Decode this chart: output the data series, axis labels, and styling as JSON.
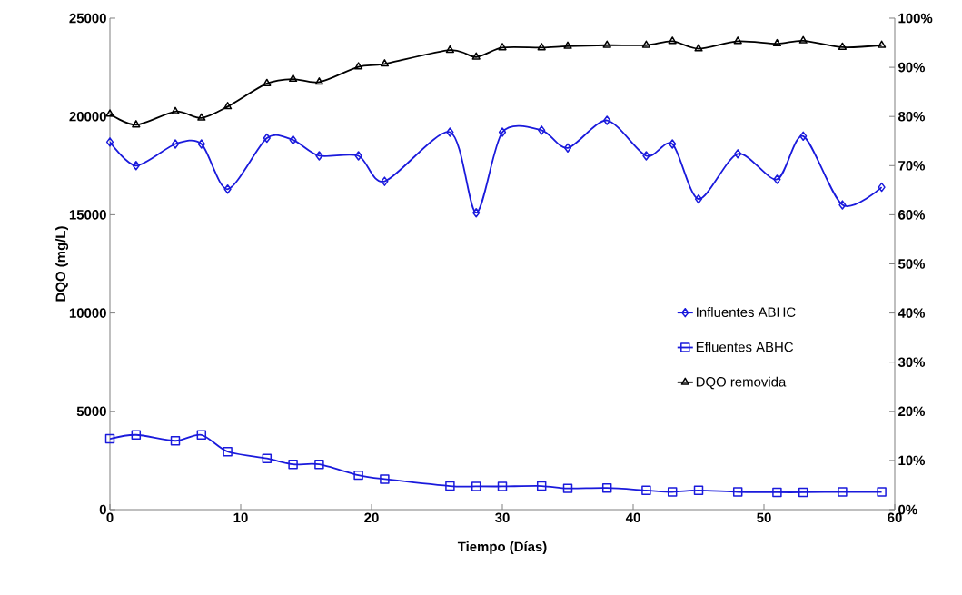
{
  "chart_data": {
    "type": "line",
    "xlabel": "Tiempo (Días)",
    "ylabel": "DQO (mg/L)",
    "x": [
      0,
      2,
      5,
      7,
      9,
      12,
      14,
      16,
      19,
      21,
      26,
      28,
      30,
      33,
      35,
      38,
      41,
      43,
      45,
      48,
      51,
      53,
      56,
      59
    ],
    "series": [
      {
        "name": "Influentes ABHC",
        "color": "#1a1adc",
        "marker": "diamond",
        "values": [
          18700,
          17500,
          18600,
          18600,
          16300,
          18900,
          18800,
          18000,
          18000,
          16700,
          19200,
          15100,
          19200,
          19300,
          18400,
          19800,
          18000,
          18600,
          15800,
          18100,
          16800,
          19000,
          15500,
          16400
        ]
      },
      {
        "name": "Efluentes ABHC",
        "color": "#1a1adc",
        "marker": "square",
        "values": [
          3600,
          3800,
          3500,
          3800,
          2950,
          2600,
          2300,
          2300,
          1750,
          1550,
          1200,
          1180,
          1180,
          1200,
          1080,
          1100,
          980,
          900,
          980,
          900,
          880,
          880,
          900,
          900
        ]
      },
      {
        "name": "DQO removida",
        "color": "#000000",
        "marker": "triangle",
        "axis": "y2",
        "values": [
          80.5,
          78.3,
          81,
          79.7,
          82,
          86.7,
          87.6,
          87,
          90.1,
          90.7,
          93.5,
          92.1,
          94,
          94,
          94.3,
          94.5,
          94.5,
          95.3,
          93.8,
          95.3,
          94.8,
          95.4,
          94.1,
          94.5
        ]
      }
    ],
    "xlim": [
      0,
      60
    ],
    "xticks": [
      0,
      10,
      20,
      30,
      40,
      50,
      60
    ],
    "ylim": [
      0,
      25000
    ],
    "yticks": [
      0,
      5000,
      10000,
      15000,
      20000,
      25000
    ],
    "y2lim": [
      0,
      100
    ],
    "y2ticks": [
      {
        "value": 0,
        "label": "0%"
      },
      {
        "value": 10,
        "label": "10%"
      },
      {
        "value": 20,
        "label": "20%"
      },
      {
        "value": 30,
        "label": "30%"
      },
      {
        "value": 40,
        "label": "40%"
      },
      {
        "value": 50,
        "label": "50%"
      },
      {
        "value": 60,
        "label": "60%"
      },
      {
        "value": 70,
        "label": "70%"
      },
      {
        "value": 80,
        "label": "80%"
      },
      {
        "value": 90,
        "label": "90%"
      },
      {
        "value": 100,
        "label": "100%"
      }
    ],
    "grid": false,
    "legend": "right",
    "line_style": "solid"
  }
}
